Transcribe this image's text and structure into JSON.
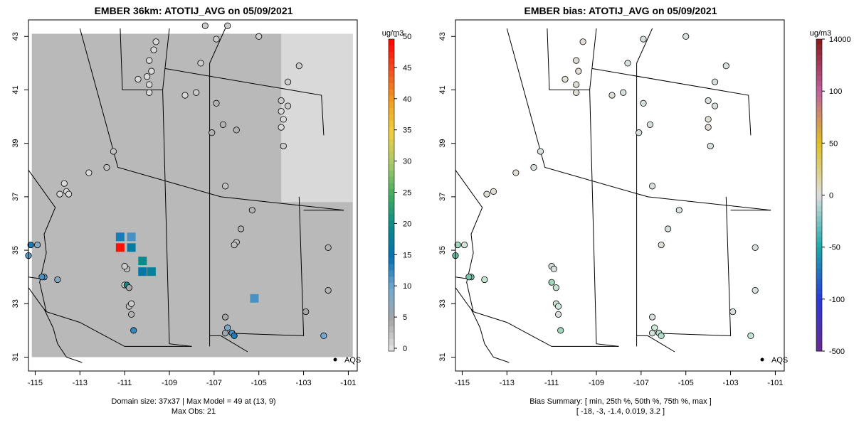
{
  "panels": [
    {
      "title": "EMBER 36km: ATOTIJ_AVG on 05/09/2021",
      "caption_line1": "Domain size: 37x37 | Max Model = 49 at (13, 9)",
      "caption_line2": "Max Obs: 21",
      "legend_unit": "ug/m3",
      "legend_ticks": [
        "0",
        "5",
        "10",
        "15",
        "20",
        "25",
        "30",
        "35",
        "40",
        "45",
        "50"
      ],
      "legend_key": "AQS"
    },
    {
      "title": "EMBER bias: ATOTIJ_AVG on 05/09/2021",
      "caption_line1": "Bias Summary: [ min, 25th %, 50th %, 75th %, max ]",
      "caption_line2": "[ -18,   -3,   -1.4,   0.019,   3.2 ]",
      "legend_unit": "ug/m3",
      "legend_ticks": [
        "-500",
        "-100",
        "-50",
        "0",
        "50",
        "100",
        "14000"
      ],
      "legend_key": "AQS"
    }
  ],
  "chart_data": [
    {
      "type": "heatmap",
      "title": "EMBER 36km: ATOTIJ_AVG on 05/09/2021",
      "units": "ug/m3",
      "x_ticks": [
        "-115",
        "-113",
        "-111",
        "-109",
        "-107",
        "-105",
        "-103",
        "-101"
      ],
      "y_ticks": [
        "31",
        "33",
        "35",
        "37",
        "39",
        "41",
        "43"
      ],
      "xlim": [
        -115.3,
        -100.6
      ],
      "ylim": [
        30.8,
        43.3
      ],
      "colorbar_range": [
        0,
        50
      ],
      "domain_size": "37x37",
      "max_model": 49,
      "max_model_cell": [
        13,
        9
      ],
      "max_obs": 21,
      "background_value": 3.5,
      "northeast_value": 1,
      "highlight_cells": [
        {
          "lon": -111.2,
          "lat": 35.1,
          "value": 49
        },
        {
          "lon": -110.7,
          "lat": 35.1,
          "value": 17
        },
        {
          "lon": -111.2,
          "lat": 35.5,
          "value": 14
        },
        {
          "lon": -110.7,
          "lat": 35.5,
          "value": 12
        },
        {
          "lon": -110.2,
          "lat": 34.6,
          "value": 20
        },
        {
          "lon": -109.8,
          "lat": 34.2,
          "value": 18
        },
        {
          "lon": -110.2,
          "lat": 34.2,
          "value": 16
        },
        {
          "lon": -105.2,
          "lat": 33.2,
          "value": 12
        }
      ],
      "obs_points": [
        {
          "lon": -109.6,
          "lat": 42.8,
          "value": 1
        },
        {
          "lon": -109.7,
          "lat": 42.5,
          "value": 1
        },
        {
          "lon": -109.9,
          "lat": 42.1,
          "value": 1
        },
        {
          "lon": -109.8,
          "lat": 41.7,
          "value": 1
        },
        {
          "lon": -109.9,
          "lat": 41.2,
          "value": 1
        },
        {
          "lon": -109.9,
          "lat": 40.9,
          "value": 1
        },
        {
          "lon": -110.4,
          "lat": 41.4,
          "value": 1
        },
        {
          "lon": -110.0,
          "lat": 41.5,
          "value": 1
        },
        {
          "lon": -108.3,
          "lat": 40.8,
          "value": 1
        },
        {
          "lon": -107.8,
          "lat": 40.9,
          "value": 2
        },
        {
          "lon": -107.6,
          "lat": 42.0,
          "value": 2
        },
        {
          "lon": -106.9,
          "lat": 42.9,
          "value": 2
        },
        {
          "lon": -107.4,
          "lat": 43.4,
          "value": 2
        },
        {
          "lon": -106.4,
          "lat": 43.4,
          "value": 2
        },
        {
          "lon": -105.0,
          "lat": 43.0,
          "value": 2
        },
        {
          "lon": -103.2,
          "lat": 41.9,
          "value": 2
        },
        {
          "lon": -103.7,
          "lat": 41.3,
          "value": 2
        },
        {
          "lon": -104.0,
          "lat": 40.6,
          "value": 2
        },
        {
          "lon": -103.7,
          "lat": 40.4,
          "value": 2
        },
        {
          "lon": -104.0,
          "lat": 40.2,
          "value": 1
        },
        {
          "lon": -103.9,
          "lat": 39.9,
          "value": 1
        },
        {
          "lon": -104.0,
          "lat": 39.6,
          "value": 1
        },
        {
          "lon": -103.9,
          "lat": 38.9,
          "value": 2
        },
        {
          "lon": -106.9,
          "lat": 40.5,
          "value": 4
        },
        {
          "lon": -106.6,
          "lat": 39.7,
          "value": 4
        },
        {
          "lon": -107.1,
          "lat": 39.4,
          "value": 4
        },
        {
          "lon": -106.0,
          "lat": 39.5,
          "value": 4
        },
        {
          "lon": -111.5,
          "lat": 38.7,
          "value": 3
        },
        {
          "lon": -111.8,
          "lat": 38.1,
          "value": 3
        },
        {
          "lon": -112.6,
          "lat": 37.9,
          "value": 1
        },
        {
          "lon": -113.6,
          "lat": 37.2,
          "value": 1
        },
        {
          "lon": -113.9,
          "lat": 37.1,
          "value": 1
        },
        {
          "lon": -113.7,
          "lat": 37.5,
          "value": 1
        },
        {
          "lon": -113.5,
          "lat": 37.1,
          "value": 1
        },
        {
          "lon": -106.5,
          "lat": 37.4,
          "value": 3
        },
        {
          "lon": -105.3,
          "lat": 36.5,
          "value": 4
        },
        {
          "lon": -105.8,
          "lat": 35.8,
          "value": 4
        },
        {
          "lon": -106.0,
          "lat": 35.3,
          "value": 3
        },
        {
          "lon": -106.1,
          "lat": 35.2,
          "value": 3
        },
        {
          "lon": -101.9,
          "lat": 35.1,
          "value": 4
        },
        {
          "lon": -101.9,
          "lat": 33.5,
          "value": 4
        },
        {
          "lon": -102.9,
          "lat": 32.7,
          "value": 5
        },
        {
          "lon": -102.1,
          "lat": 31.8,
          "value": 10
        },
        {
          "lon": -106.5,
          "lat": 32.5,
          "value": 5
        },
        {
          "lon": -106.4,
          "lat": 32.1,
          "value": 9
        },
        {
          "lon": -106.5,
          "lat": 31.9,
          "value": 6
        },
        {
          "lon": -106.2,
          "lat": 31.9,
          "value": 12
        },
        {
          "lon": -106.1,
          "lat": 31.8,
          "value": 14
        },
        {
          "lon": -110.6,
          "lat": 32.0,
          "value": 13
        },
        {
          "lon": -110.7,
          "lat": 32.6,
          "value": 4
        },
        {
          "lon": -110.8,
          "lat": 32.9,
          "value": 3
        },
        {
          "lon": -110.7,
          "lat": 33.0,
          "value": 2
        },
        {
          "lon": -111.0,
          "lat": 33.7,
          "value": 1
        },
        {
          "lon": -110.9,
          "lat": 33.7,
          "value": 20
        },
        {
          "lon": -110.8,
          "lat": 33.6,
          "value": 5
        },
        {
          "lon": -110.9,
          "lat": 34.3,
          "value": 3
        },
        {
          "lon": -111.0,
          "lat": 34.4,
          "value": 2
        },
        {
          "lon": -114.6,
          "lat": 34.0,
          "value": 11
        },
        {
          "lon": -114.7,
          "lat": 34.0,
          "value": 12
        },
        {
          "lon": -114.0,
          "lat": 33.9,
          "value": 8
        },
        {
          "lon": -115.2,
          "lat": 35.2,
          "value": 14
        },
        {
          "lon": -115.3,
          "lat": 34.8,
          "value": 11
        },
        {
          "lon": -114.9,
          "lat": 35.2,
          "value": 8
        }
      ]
    },
    {
      "type": "scatter",
      "title": "EMBER bias: ATOTIJ_AVG on 05/09/2021",
      "units": "ug/m3",
      "x_ticks": [
        "-115",
        "-113",
        "-111",
        "-109",
        "-107",
        "-105",
        "-103",
        "-101"
      ],
      "y_ticks": [
        "31",
        "33",
        "35",
        "37",
        "39",
        "41",
        "43"
      ],
      "xlim": [
        -115.3,
        -100.6
      ],
      "ylim": [
        30.8,
        43.3
      ],
      "colorbar_ticks": [
        -500,
        -100,
        -50,
        0,
        50,
        100,
        14000
      ],
      "bias_summary": {
        "min": -18,
        "p25": -3,
        "p50": -1.4,
        "p75": 0.019,
        "max": 3.2
      },
      "points": [
        {
          "lon": -109.6,
          "lat": 42.8,
          "value": 1
        },
        {
          "lon": -109.9,
          "lat": 42.1,
          "value": 1
        },
        {
          "lon": -109.8,
          "lat": 41.7,
          "value": 1
        },
        {
          "lon": -109.9,
          "lat": 41.2,
          "value": 1
        },
        {
          "lon": -109.9,
          "lat": 40.9,
          "value": 1
        },
        {
          "lon": -110.4,
          "lat": 41.4,
          "value": 1
        },
        {
          "lon": -108.3,
          "lat": 40.8,
          "value": 1
        },
        {
          "lon": -107.8,
          "lat": 40.9,
          "value": -1
        },
        {
          "lon": -107.6,
          "lat": 42.0,
          "value": -1
        },
        {
          "lon": -106.9,
          "lat": 42.9,
          "value": -1
        },
        {
          "lon": -105.0,
          "lat": 43.0,
          "value": -1
        },
        {
          "lon": -103.2,
          "lat": 41.9,
          "value": -1
        },
        {
          "lon": -103.7,
          "lat": 41.3,
          "value": -1
        },
        {
          "lon": -104.0,
          "lat": 40.6,
          "value": -1
        },
        {
          "lon": -103.7,
          "lat": 40.4,
          "value": -1
        },
        {
          "lon": -104.0,
          "lat": 39.9,
          "value": 1
        },
        {
          "lon": -104.0,
          "lat": 39.6,
          "value": 1
        },
        {
          "lon": -103.9,
          "lat": 38.9,
          "value": -1
        },
        {
          "lon": -106.9,
          "lat": 40.5,
          "value": -1
        },
        {
          "lon": -106.6,
          "lat": 39.7,
          "value": -1
        },
        {
          "lon": -107.1,
          "lat": 39.4,
          "value": -1
        },
        {
          "lon": -111.5,
          "lat": 38.7,
          "value": -1
        },
        {
          "lon": -111.8,
          "lat": 38.1,
          "value": -1
        },
        {
          "lon": -112.6,
          "lat": 37.9,
          "value": 1
        },
        {
          "lon": -113.6,
          "lat": 37.2,
          "value": 1
        },
        {
          "lon": -113.9,
          "lat": 37.1,
          "value": 1
        },
        {
          "lon": -106.5,
          "lat": 37.4,
          "value": -1
        },
        {
          "lon": -105.3,
          "lat": 36.5,
          "value": -1
        },
        {
          "lon": -105.8,
          "lat": 35.8,
          "value": -1
        },
        {
          "lon": -106.1,
          "lat": 35.2,
          "value": 1
        },
        {
          "lon": -101.9,
          "lat": 35.1,
          "value": -1
        },
        {
          "lon": -101.9,
          "lat": 33.5,
          "value": -1
        },
        {
          "lon": -102.9,
          "lat": 32.7,
          "value": -1
        },
        {
          "lon": -102.1,
          "lat": 31.8,
          "value": -4
        },
        {
          "lon": -106.5,
          "lat": 32.5,
          "value": -1
        },
        {
          "lon": -106.4,
          "lat": 32.1,
          "value": -3
        },
        {
          "lon": -106.5,
          "lat": 31.9,
          "value": -2
        },
        {
          "lon": -106.2,
          "lat": 31.9,
          "value": -5
        },
        {
          "lon": -106.1,
          "lat": 31.8,
          "value": -6
        },
        {
          "lon": -110.6,
          "lat": 32.0,
          "value": -8
        },
        {
          "lon": -110.7,
          "lat": 32.6,
          "value": -1
        },
        {
          "lon": -110.8,
          "lat": 33.0,
          "value": -2
        },
        {
          "lon": -110.7,
          "lat": 32.9,
          "value": -3
        },
        {
          "lon": -111.0,
          "lat": 33.8,
          "value": -8
        },
        {
          "lon": -110.8,
          "lat": 33.6,
          "value": -4
        },
        {
          "lon": -111.0,
          "lat": 34.4,
          "value": -1
        },
        {
          "lon": -110.9,
          "lat": 34.3,
          "value": -1
        },
        {
          "lon": -114.6,
          "lat": 34.0,
          "value": -10
        },
        {
          "lon": -114.7,
          "lat": 34.0,
          "value": -12
        },
        {
          "lon": -114.0,
          "lat": 33.9,
          "value": -4
        },
        {
          "lon": -115.2,
          "lat": 35.2,
          "value": -8
        },
        {
          "lon": -115.3,
          "lat": 34.8,
          "value": -14
        },
        {
          "lon": -114.9,
          "lat": 35.2,
          "value": -2
        }
      ]
    }
  ]
}
